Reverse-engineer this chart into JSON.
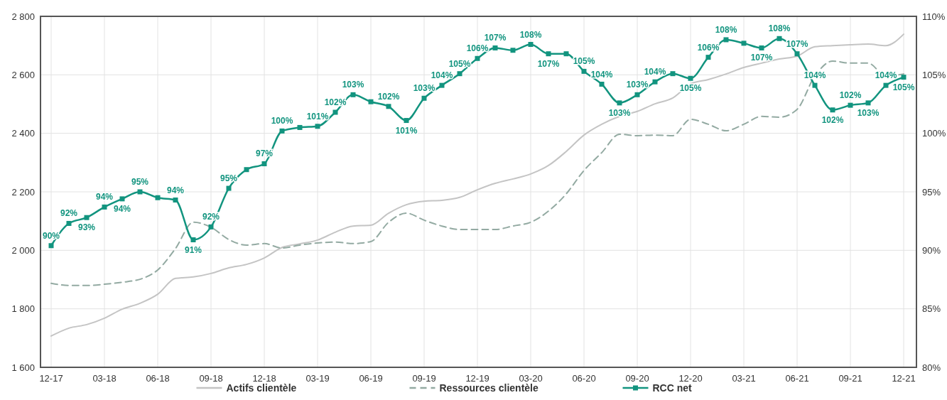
{
  "chart_data": {
    "type": "line",
    "categories": [
      "12-17",
      null,
      null,
      "03-18",
      null,
      null,
      "06-18",
      null,
      null,
      "09-18",
      null,
      null,
      "12-18",
      null,
      null,
      "03-19",
      null,
      null,
      "06-19",
      null,
      null,
      "09-19",
      null,
      null,
      "12-19",
      null,
      null,
      "03-20",
      null,
      null,
      "06-20",
      null,
      null,
      "09-20",
      null,
      null,
      "12-20",
      null,
      null,
      "03-21",
      null,
      null,
      "06-21",
      null,
      null,
      "09-21",
      null,
      null,
      "12-21"
    ],
    "series": [
      {
        "name": "Actifs clientèle",
        "color": "#c4c4c4",
        "line_style": "solid",
        "marker": "none",
        "values": [
          1707,
          1734,
          1746,
          1768,
          1799,
          1819,
          1850,
          1904,
          1909,
          1921,
          1940,
          1952,
          1974,
          2010,
          2022,
          2035,
          2062,
          2083,
          2086,
          2127,
          2156,
          2168,
          2171,
          2181,
          2207,
          2229,
          2244,
          2261,
          2290,
          2338,
          2394,
          2431,
          2458,
          2475,
          2501,
          2521,
          2569,
          2584,
          2603,
          2625,
          2640,
          2654,
          2664,
          2696,
          2700,
          2703,
          2705,
          2700,
          2739
        ]
      },
      {
        "name": "Ressources clientèle",
        "color": "#93aaa2",
        "line_style": "dashed",
        "marker": "none",
        "values": [
          1887,
          1880,
          1880,
          1884,
          1891,
          1901,
          1933,
          2006,
          2096,
          2079,
          2037,
          2018,
          2023,
          2008,
          2018,
          2025,
          2028,
          2023,
          2030,
          2096,
          2127,
          2103,
          2083,
          2071,
          2071,
          2071,
          2083,
          2096,
          2134,
          2193,
          2273,
          2334,
          2397,
          2392,
          2394,
          2392,
          2448,
          2431,
          2409,
          2431,
          2458,
          2455,
          2482,
          2596,
          2647,
          2640,
          2640,
          2596,
          2603
        ]
      },
      {
        "name": "RCC net",
        "color": "#12947f",
        "line_style": "solid",
        "marker": "square",
        "axis": "y2",
        "values": [
          90.4,
          92.3,
          92.8,
          93.7,
          94.4,
          95.0,
          94.5,
          94.3,
          90.9,
          92.0,
          95.3,
          96.9,
          97.4,
          100.2,
          100.5,
          100.6,
          101.8,
          103.3,
          102.7,
          102.3,
          101.1,
          103.0,
          104.1,
          105.1,
          106.4,
          107.3,
          107.1,
          107.6,
          106.8,
          106.8,
          105.3,
          104.2,
          102.6,
          103.3,
          104.4,
          105.1,
          104.7,
          106.5,
          108.0,
          107.7,
          107.3,
          108.1,
          106.8,
          104.1,
          102.0,
          102.4,
          102.6,
          104.1,
          104.8
        ],
        "value_labels": [
          "90%",
          "92%",
          "93%",
          "94%",
          "94%",
          "95%",
          null,
          "94%",
          "91%",
          "92%",
          "95%",
          null,
          "97%",
          "100%",
          null,
          "101%",
          "102%",
          "103%",
          null,
          "102%",
          "101%",
          "103%",
          "104%",
          "105%",
          "106%",
          "107%",
          null,
          "108%",
          "107%",
          null,
          "105%",
          "104%",
          "103%",
          "103%",
          "104%",
          null,
          "105%",
          "106%",
          "108%",
          null,
          "107%",
          "108%",
          "107%",
          "104%",
          "102%",
          "102%",
          "103%",
          "104%",
          "105%"
        ]
      }
    ],
    "ylim": [
      1600,
      2800
    ],
    "yticks": [
      {
        "value": 1600,
        "label": "1 600"
      },
      {
        "value": 1800,
        "label": "1 800"
      },
      {
        "value": 2000,
        "label": "2 000"
      },
      {
        "value": 2200,
        "label": "2 200"
      },
      {
        "value": 2400,
        "label": "2 400"
      },
      {
        "value": 2600,
        "label": "2 600"
      },
      {
        "value": 2800,
        "label": "2 800"
      }
    ],
    "y2lim": [
      80,
      110
    ],
    "y2ticks": [
      {
        "value": 80,
        "label": "80%"
      },
      {
        "value": 85,
        "label": "85%"
      },
      {
        "value": 90,
        "label": "90%"
      },
      {
        "value": 95,
        "label": "95%"
      },
      {
        "value": 100,
        "label": "100%"
      },
      {
        "value": 105,
        "label": "105%"
      },
      {
        "value": 110,
        "label": "110%"
      }
    ],
    "grid": true,
    "legend": "bottom"
  }
}
